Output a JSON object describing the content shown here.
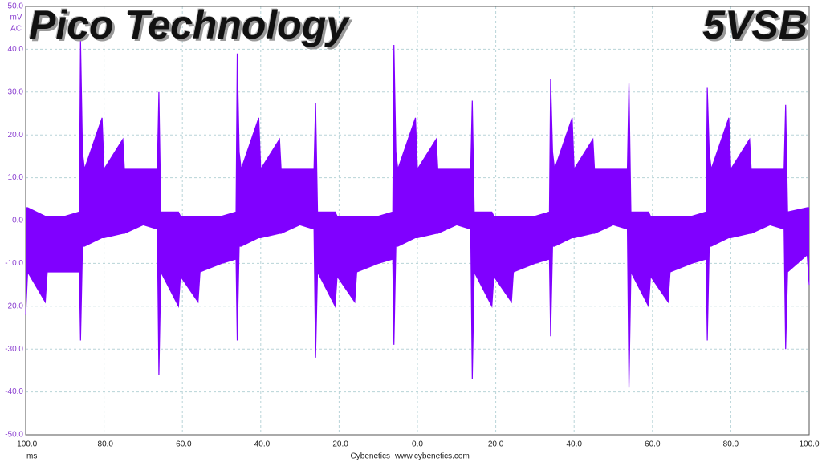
{
  "chart_data": {
    "type": "band",
    "title": "Pico Technology",
    "subtitle": "5VSB",
    "ylabel": "mV",
    "coupling": "AC",
    "xlabel": "ms",
    "footer": [
      "Cybenetics",
      "www.cybenetics.com"
    ],
    "color": "#8000ff",
    "grid": true,
    "xlim": [
      -100,
      100
    ],
    "ylim": [
      -50,
      50
    ],
    "xticks": [
      {
        "value": -100,
        "label": "-100.0"
      },
      {
        "value": -80,
        "label": "-80.0"
      },
      {
        "value": -60,
        "label": "-60.0"
      },
      {
        "value": -40,
        "label": "-40.0"
      },
      {
        "value": -20,
        "label": "-20.0"
      },
      {
        "value": 0,
        "label": "0.0"
      },
      {
        "value": 20,
        "label": "20.0"
      },
      {
        "value": 40,
        "label": "40.0"
      },
      {
        "value": 60,
        "label": "60.0"
      },
      {
        "value": 80,
        "label": "80.0"
      },
      {
        "value": 100,
        "label": "100.0"
      }
    ],
    "yticks": [
      {
        "value": -50,
        "label": "-50.0"
      },
      {
        "value": -40,
        "label": "-40.0"
      },
      {
        "value": -30,
        "label": "-30.0"
      },
      {
        "value": -20,
        "label": "-20.0"
      },
      {
        "value": -10,
        "label": "-10.0"
      },
      {
        "value": 0,
        "label": "0.0"
      },
      {
        "value": 10,
        "label": "10.0"
      },
      {
        "value": 20,
        "label": "20.0"
      },
      {
        "value": 30,
        "label": "30.0"
      },
      {
        "value": 40,
        "label": "40.0"
      },
      {
        "value": 50,
        "label": "50.0"
      }
    ],
    "x": [
      -100,
      -99.5,
      -95,
      -94.5,
      -90,
      -86.3,
      -86,
      -85.5,
      -85,
      -80.5,
      -80,
      -75.2,
      -74.8,
      -70,
      -66.4,
      -66,
      -65.5,
      -61,
      -60.5,
      -56,
      -55.5,
      -50,
      -46.3,
      -46,
      -45.5,
      -45,
      -40.5,
      -40,
      -35.2,
      -34.8,
      -30,
      -26.4,
      -26,
      -25.5,
      -21,
      -20.5,
      -16,
      -15.5,
      -10,
      -6.3,
      -6,
      -5.5,
      -5,
      -0.5,
      0,
      4.8,
      5.2,
      10,
      13.6,
      14,
      14.5,
      19,
      19.5,
      24,
      24.5,
      30,
      33.7,
      34,
      34.5,
      35,
      39.5,
      40,
      44.8,
      45.2,
      50,
      53.6,
      54,
      54.5,
      59,
      59.5,
      64,
      64.5,
      70,
      73.7,
      74,
      74.5,
      75,
      79.5,
      80,
      84.8,
      85.2,
      90,
      93.6,
      94,
      94.5,
      99.5,
      100
    ],
    "series": [
      {
        "values": [
          3,
          3,
          1,
          1,
          1,
          2,
          42,
          16,
          12,
          24,
          12,
          19,
          12,
          12,
          12,
          30,
          2,
          2,
          1,
          1,
          1,
          1,
          2,
          39,
          16,
          12,
          24,
          12,
          19,
          12,
          12,
          12,
          27.5,
          2,
          2,
          1,
          1,
          1,
          1,
          2,
          41,
          16,
          12,
          24,
          12,
          19,
          12,
          12,
          12,
          28,
          2,
          2,
          1,
          1,
          1,
          1,
          2,
          33,
          16,
          12,
          24,
          12,
          19,
          12,
          12,
          12,
          32,
          2,
          2,
          1,
          1,
          1,
          1,
          2,
          31,
          16,
          12,
          24,
          12,
          19,
          12,
          12,
          12,
          27,
          2,
          3,
          3
        ]
      },
      {
        "values": [
          -22,
          -12,
          -19,
          -12,
          -12,
          -12,
          -28,
          -6,
          -6,
          -4,
          -4,
          -3,
          -3,
          -1,
          -2,
          -36,
          -12,
          -20,
          -13,
          -19,
          -12,
          -10,
          -9,
          -28,
          -6,
          -6,
          -4,
          -4,
          -3,
          -3,
          -1,
          -2,
          -32,
          -12,
          -20,
          -13,
          -19,
          -12,
          -10,
          -9,
          -29,
          -6,
          -6,
          -4,
          -4,
          -3,
          -3,
          -1,
          -2,
          -37,
          -12,
          -20,
          -13,
          -19,
          -12,
          -10,
          -9,
          -27,
          -6,
          -6,
          -4,
          -4,
          -3,
          -3,
          -1,
          -2,
          -39,
          -12,
          -20,
          -13,
          -19,
          -12,
          -10,
          -9,
          -28,
          -6,
          -6,
          -4,
          -4,
          -3,
          -3,
          -1,
          -2,
          -30,
          -12,
          -8,
          -15
        ]
      }
    ]
  }
}
